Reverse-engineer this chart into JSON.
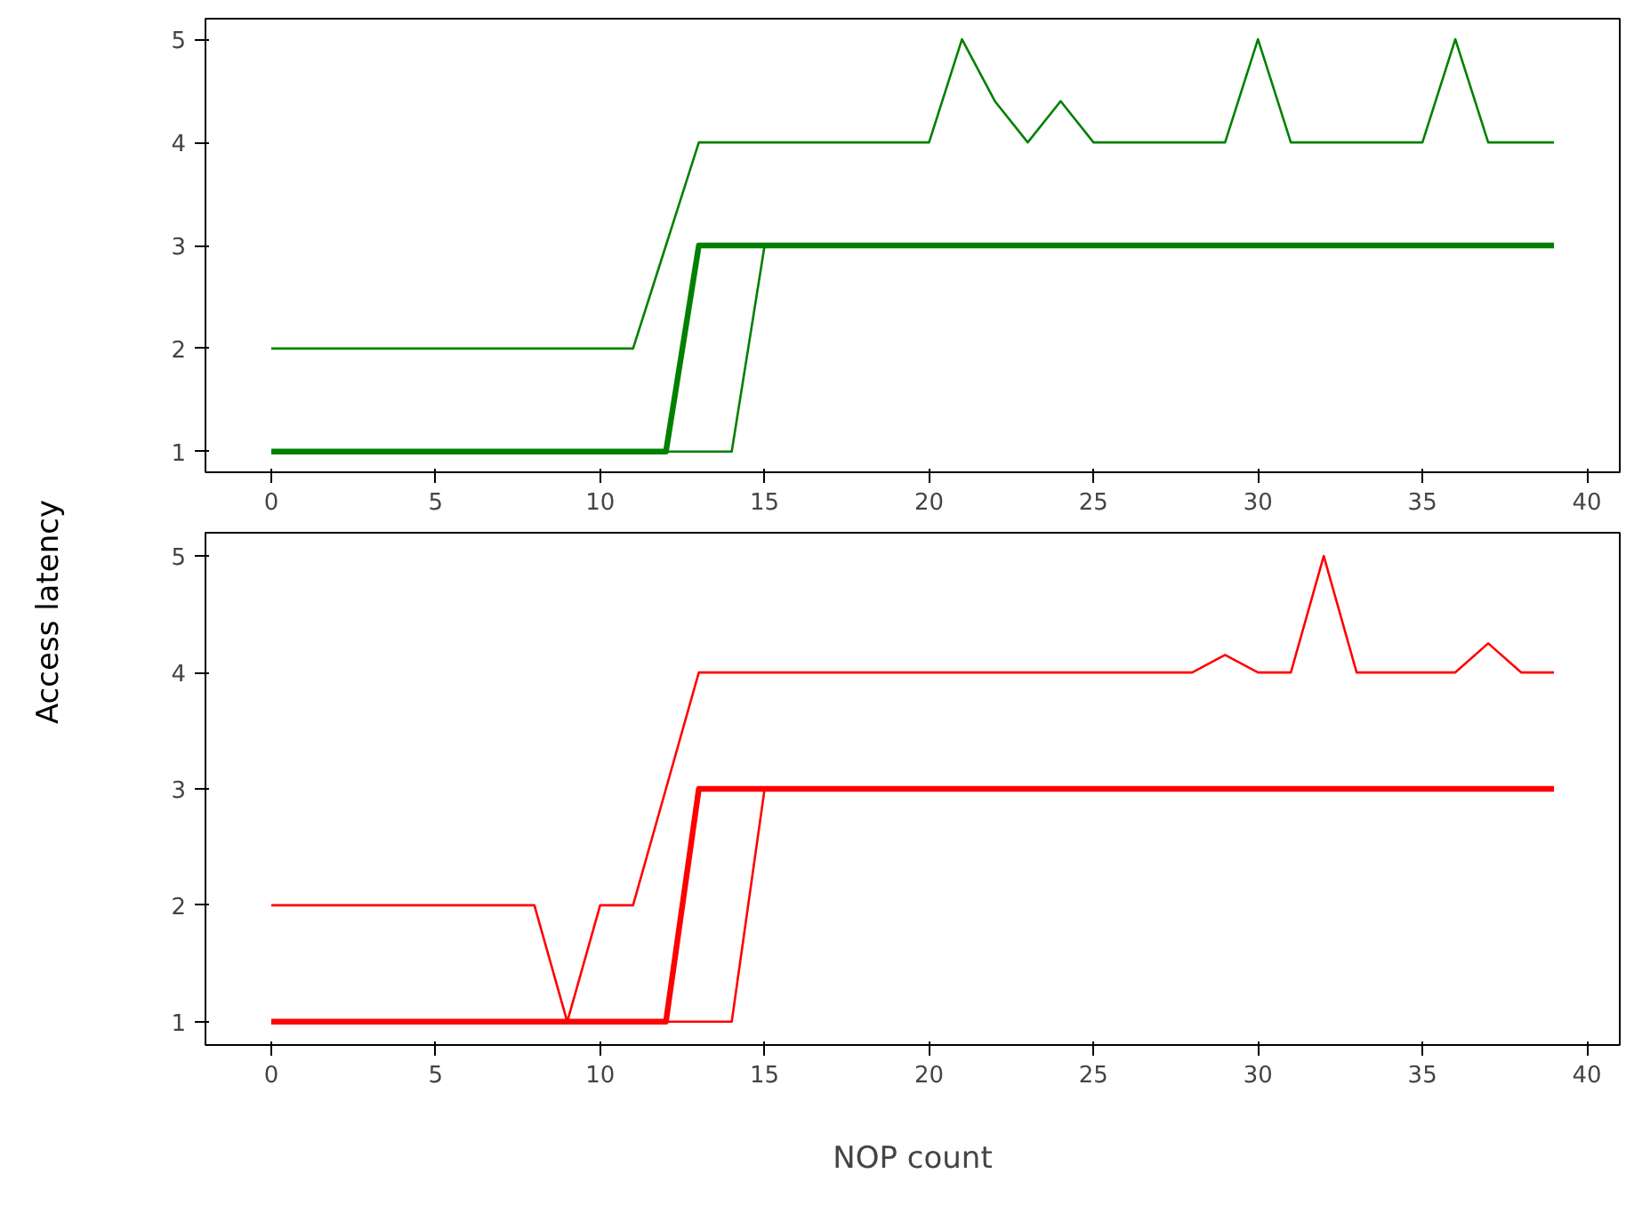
{
  "chart_data": [
    {
      "type": "line",
      "ylabel": "Access latency",
      "x": [
        0,
        1,
        2,
        3,
        4,
        5,
        6,
        7,
        8,
        9,
        10,
        11,
        12,
        13,
        14,
        15,
        16,
        17,
        18,
        19,
        20,
        21,
        22,
        23,
        24,
        25,
        26,
        27,
        28,
        29,
        30,
        31,
        32,
        33,
        34,
        35,
        36,
        37,
        38,
        39
      ],
      "xlim": [
        -2,
        41
      ],
      "xticks": [
        0,
        5,
        10,
        15,
        20,
        25,
        30,
        35,
        40
      ],
      "ylim": [
        0.8,
        5.2
      ],
      "yticks": [
        1,
        2,
        3,
        4,
        5
      ],
      "series": [
        {
          "color": "#008000",
          "values": [
            2,
            2,
            2,
            2,
            2,
            2,
            2,
            2,
            2,
            2,
            2,
            2,
            3,
            4,
            4,
            4,
            4,
            4,
            4,
            4,
            4,
            5,
            4.4,
            4,
            4.4,
            4,
            4,
            4,
            4,
            4,
            5,
            4,
            4,
            4,
            4,
            4,
            5,
            4,
            4,
            4
          ]
        },
        {
          "color": "#008000",
          "values": [
            1,
            1,
            1,
            1,
            1,
            1,
            1,
            1,
            1,
            1,
            1,
            1,
            1,
            3,
            3,
            3,
            3,
            3,
            3,
            3,
            3,
            3,
            3,
            3,
            3,
            3,
            3,
            3,
            3,
            3,
            3,
            3,
            3,
            3,
            3,
            3,
            3,
            3,
            3,
            3
          ]
        },
        {
          "color": "#008000",
          "values": [
            1,
            1,
            1,
            1,
            1,
            1,
            1,
            1,
            1,
            1,
            1,
            1,
            1,
            1,
            1,
            3,
            3,
            3,
            3,
            3,
            3,
            3,
            3,
            3,
            3,
            3,
            3,
            3,
            3,
            3,
            3,
            3,
            3,
            3,
            3,
            3,
            3,
            3,
            3,
            3
          ]
        }
      ]
    },
    {
      "type": "line",
      "xlabel": "NOP count",
      "x": [
        0,
        1,
        2,
        3,
        4,
        5,
        6,
        7,
        8,
        9,
        10,
        11,
        12,
        13,
        14,
        15,
        16,
        17,
        18,
        19,
        20,
        21,
        22,
        23,
        24,
        25,
        26,
        27,
        28,
        29,
        30,
        31,
        32,
        33,
        34,
        35,
        36,
        37,
        38,
        39
      ],
      "xlim": [
        -2,
        41
      ],
      "xticks": [
        0,
        5,
        10,
        15,
        20,
        25,
        30,
        35,
        40
      ],
      "ylim": [
        0.8,
        5.2
      ],
      "yticks": [
        1,
        2,
        3,
        4,
        5
      ],
      "series": [
        {
          "color": "#ff0000",
          "values": [
            2,
            2,
            2,
            2,
            2,
            2,
            2,
            2,
            2,
            1,
            2,
            2,
            3,
            4,
            4,
            4,
            4,
            4,
            4,
            4,
            4,
            4,
            4,
            4,
            4,
            4,
            4,
            4,
            4,
            4.15,
            4,
            4,
            5,
            4,
            4,
            4,
            4,
            4.25,
            4,
            4
          ]
        },
        {
          "color": "#ff0000",
          "values": [
            1,
            1,
            1,
            1,
            1,
            1,
            1,
            1,
            1,
            1,
            1,
            1,
            1,
            3,
            3,
            3,
            3,
            3,
            3,
            3,
            3,
            3,
            3,
            3,
            3,
            3,
            3,
            3,
            3,
            3,
            3,
            3,
            3,
            3,
            3,
            3,
            3,
            3,
            3,
            3
          ]
        },
        {
          "color": "#ff0000",
          "values": [
            1,
            1,
            1,
            1,
            1,
            1,
            1,
            1,
            1,
            1,
            1,
            1,
            1,
            1,
            1,
            3,
            3,
            3,
            3,
            3,
            3,
            3,
            3,
            3,
            3,
            3,
            3,
            3,
            3,
            3,
            3,
            3,
            3,
            3,
            3,
            3,
            3,
            3,
            3,
            3
          ]
        }
      ]
    }
  ]
}
